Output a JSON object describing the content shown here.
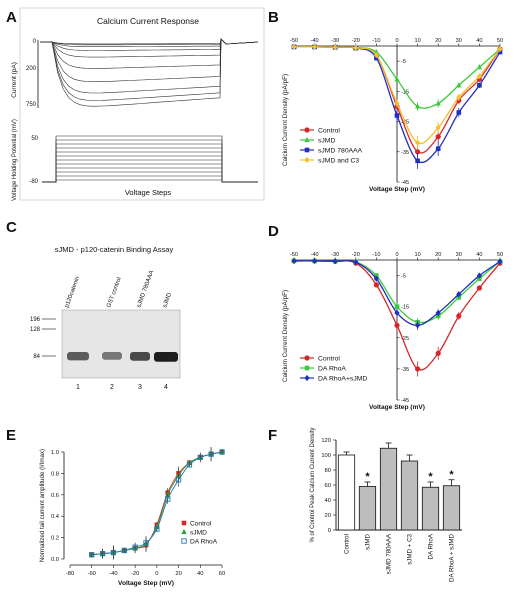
{
  "panel_labels": [
    "A",
    "B",
    "C",
    "D",
    "E",
    "F"
  ],
  "chart_data": [
    {
      "panel": "A",
      "type": "line",
      "title": "Calcium Current Response",
      "ylabel": "Current (pA)",
      "yticks": [
        "0",
        "200",
        "750"
      ],
      "sub_ylabel": "Voltage Holding Potential (mV)",
      "sub_yticks": [
        "50",
        "-80"
      ],
      "xlabel": "Voltage Steps"
    },
    {
      "panel": "B",
      "type": "line",
      "xlabel": "Voltage Step (mV)",
      "ylabel": "Calcium Current Density (pA/pF)",
      "xlim": [
        -50,
        50
      ],
      "ylim": [
        -45,
        0
      ],
      "xticks": [
        -50,
        -40,
        -30,
        -20,
        -10,
        0,
        10,
        20,
        30,
        40,
        50
      ],
      "yticks": [
        -5,
        -15,
        -25,
        -35,
        -45
      ],
      "x": [
        -50,
        -40,
        -30,
        -20,
        -10,
        0,
        10,
        20,
        30,
        40,
        50
      ],
      "legend_position": "bottom-left",
      "series": [
        {
          "name": "Control",
          "color": "#d62728",
          "marker": "circle",
          "values": [
            -0.3,
            -0.3,
            -0.4,
            -0.6,
            -3,
            -20,
            -35,
            -30,
            -18,
            -11,
            -1
          ]
        },
        {
          "name": "sJMD",
          "color": "#3cc93c",
          "marker": "triangle",
          "values": [
            -0.3,
            -0.3,
            -0.4,
            -0.5,
            -2,
            -11,
            -20,
            -19,
            -13,
            -7,
            -1
          ]
        },
        {
          "name": "sJMD 780AAA",
          "color": "#1f2fbf",
          "marker": "square",
          "values": [
            -0.3,
            -0.3,
            -0.4,
            -0.7,
            -4,
            -23,
            -38,
            -34,
            -22,
            -13,
            -2
          ]
        },
        {
          "name": "sJMD and C3",
          "color": "#f2c12e",
          "marker": "diamond",
          "values": [
            -0.3,
            -0.3,
            -0.4,
            -0.6,
            -3,
            -19,
            -32,
            -27,
            -17,
            -10,
            -1
          ]
        }
      ]
    },
    {
      "panel": "C",
      "type": "other",
      "title": "sJMD - p120-catenin Binding Assay",
      "lanes": [
        "p120catenin",
        "GST control",
        "sJMD 780AAA",
        "sJMD"
      ],
      "lane_numbers": [
        "1",
        "2",
        "3",
        "4"
      ],
      "markers": [
        "196",
        "128",
        "84"
      ],
      "band_intensity": [
        0.6,
        0.45,
        0.7,
        0.95
      ]
    },
    {
      "panel": "D",
      "type": "line",
      "xlabel": "Voltage Step (mV)",
      "ylabel": "Calcium Current Density (pA/pF)",
      "xlim": [
        -50,
        50
      ],
      "ylim": [
        -45,
        0
      ],
      "xticks": [
        -50,
        -40,
        -30,
        -20,
        -10,
        0,
        10,
        20,
        30,
        40,
        50
      ],
      "yticks": [
        -5,
        -15,
        -25,
        -35,
        -45
      ],
      "x": [
        -50,
        -40,
        -30,
        -20,
        -10,
        0,
        10,
        20,
        30,
        40,
        50
      ],
      "legend_position": "bottom-left",
      "series": [
        {
          "name": "Control",
          "color": "#d62728",
          "marker": "circle",
          "values": [
            -0.3,
            -0.3,
            -0.4,
            -1,
            -8,
            -21,
            -35,
            -30,
            -18,
            -9,
            -1
          ]
        },
        {
          "name": "DA RhoA",
          "color": "#3cc93c",
          "marker": "square",
          "values": [
            -0.3,
            -0.3,
            -0.4,
            -0.6,
            -5,
            -15,
            -20,
            -18,
            -12,
            -6,
            -0.5
          ]
        },
        {
          "name": "DA RhoA+sJMD",
          "color": "#1f2fbf",
          "marker": "diamond",
          "values": [
            -0.3,
            -0.3,
            -0.4,
            -0.7,
            -6,
            -17,
            -21,
            -17,
            -11,
            -5,
            -0.5
          ]
        }
      ]
    },
    {
      "panel": "E",
      "type": "scatter",
      "xlabel": "Voltage Step (mV)",
      "ylabel": "Normalized tail current amplitude (I/Imax)",
      "xlim": [
        -80,
        60
      ],
      "ylim": [
        0,
        1.0
      ],
      "xticks": [
        -80,
        -60,
        -40,
        -20,
        0,
        20,
        40,
        60
      ],
      "yticks": [
        0.0,
        0.2,
        0.4,
        0.6,
        0.8,
        1.0
      ],
      "x": [
        -60,
        -50,
        -40,
        -30,
        -20,
        -10,
        0,
        10,
        20,
        30,
        40,
        50,
        60
      ],
      "legend_position": "bottom-right",
      "series": [
        {
          "name": "Control",
          "color": "#d62728",
          "marker": "square",
          "values": [
            0.04,
            0.05,
            0.06,
            0.08,
            0.1,
            0.13,
            0.32,
            0.62,
            0.8,
            0.9,
            0.95,
            0.98,
            1.0
          ]
        },
        {
          "name": "sJMD",
          "color": "#2ca02c",
          "marker": "triangle",
          "values": [
            0.04,
            0.05,
            0.06,
            0.08,
            0.1,
            0.14,
            0.3,
            0.6,
            0.78,
            0.9,
            0.95,
            0.98,
            1.0
          ]
        },
        {
          "name": "DA RhoA",
          "color": "#1f77b4",
          "marker": "square-open",
          "values": [
            0.04,
            0.05,
            0.06,
            0.08,
            0.11,
            0.15,
            0.28,
            0.56,
            0.74,
            0.88,
            0.95,
            0.98,
            1.0
          ]
        }
      ]
    },
    {
      "panel": "F",
      "type": "bar",
      "ylabel": "% of Control Peak Calcium Current Density",
      "ylim": [
        0,
        120
      ],
      "yticks": [
        0,
        20,
        40,
        60,
        80,
        100,
        120
      ],
      "categories": [
        "Control",
        "sJMD",
        "sJMD 780AAA",
        "sJMD + C3",
        "DA RhoA",
        "DA RhoA + sJMD"
      ],
      "values": [
        100,
        58,
        109,
        92,
        57,
        59
      ],
      "errors": [
        4,
        6,
        7,
        8,
        7,
        8
      ],
      "significant": [
        false,
        true,
        false,
        false,
        true,
        true
      ],
      "significance_marker": "*",
      "colors": [
        "#ffffff",
        "#bdbdbd",
        "#bdbdbd",
        "#bdbdbd",
        "#bdbdbd",
        "#bdbdbd"
      ]
    }
  ]
}
